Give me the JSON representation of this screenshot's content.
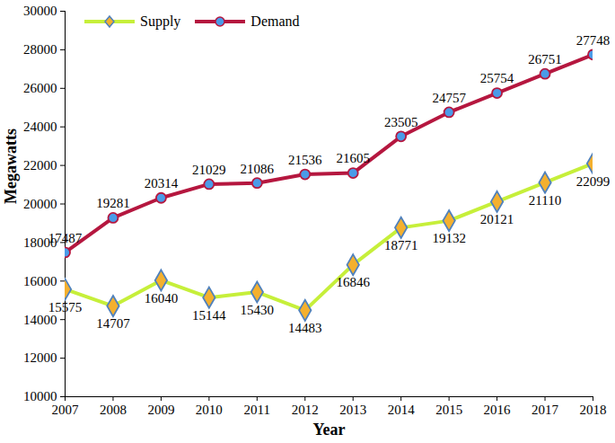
{
  "chart_data": {
    "type": "line",
    "xlabel": "Year",
    "ylabel": "Megawatts",
    "x": [
      2007,
      2008,
      2009,
      2010,
      2011,
      2012,
      2013,
      2014,
      2015,
      2016,
      2017,
      2018
    ],
    "series": [
      {
        "name": "Supply",
        "color": "#c6ef3a",
        "marker": "diamond",
        "values": [
          15575,
          14707,
          16040,
          15144,
          15430,
          14483,
          16846,
          18771,
          19132,
          20121,
          21110,
          22099
        ]
      },
      {
        "name": "Demand",
        "color": "#b5173f",
        "marker": "circle",
        "values": [
          17487,
          19281,
          20314,
          21029,
          21086,
          21536,
          21605,
          23505,
          24757,
          25754,
          26751,
          27748
        ]
      }
    ],
    "xlim": [
      2007,
      2018
    ],
    "xticks": [
      2007,
      2008,
      2009,
      2010,
      2011,
      2012,
      2013,
      2014,
      2015,
      2016,
      2017,
      2018
    ],
    "ylim": [
      10000,
      30000
    ],
    "yticks": [
      10000,
      12000,
      14000,
      16000,
      18000,
      20000,
      22000,
      24000,
      26000,
      28000,
      30000
    ],
    "grid": false,
    "legend": "upper left",
    "data_labels": true
  }
}
